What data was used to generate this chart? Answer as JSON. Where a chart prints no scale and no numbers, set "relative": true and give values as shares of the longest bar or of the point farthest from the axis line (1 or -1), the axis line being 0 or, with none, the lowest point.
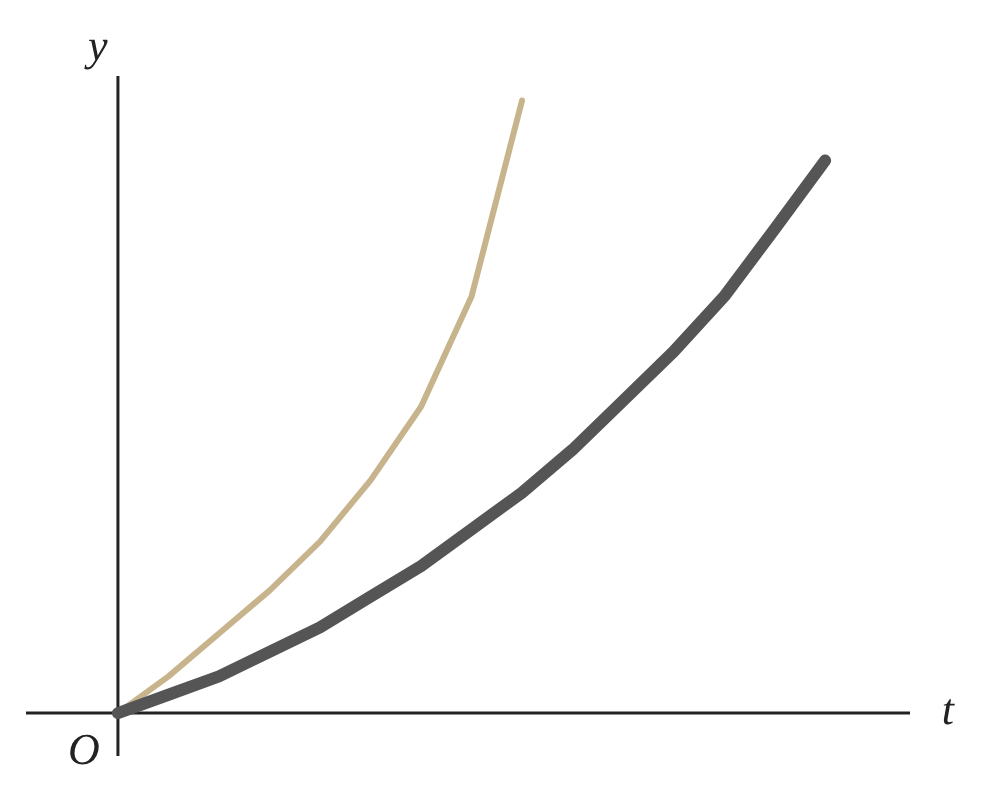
{
  "chart_data": {
    "type": "line",
    "relative": true,
    "xlabel": "t",
    "ylabel": "y",
    "annotations": [
      "O"
    ],
    "legend": false,
    "grid": false,
    "marker": "none",
    "line_style": "solid",
    "categories": [
      null,
      null,
      null,
      null,
      null,
      null,
      null,
      null,
      null,
      null,
      null,
      null,
      null,
      null,
      null
    ],
    "series": [
      {
        "color": "#c8b48c",
        "values": [
          0,
          0.06,
          0.13,
          0.2,
          0.28,
          0.38,
          0.5,
          0.68,
          1,
          null,
          null,
          null,
          null,
          null,
          null
        ]
      },
      {
        "color": "#555555",
        "values": [
          0,
          0.03,
          0.06,
          0.1,
          0.14,
          0.19,
          0.24,
          0.3,
          0.36,
          0.43,
          0.51,
          0.59,
          0.68,
          0.79,
          0.902
        ]
      }
    ]
  }
}
